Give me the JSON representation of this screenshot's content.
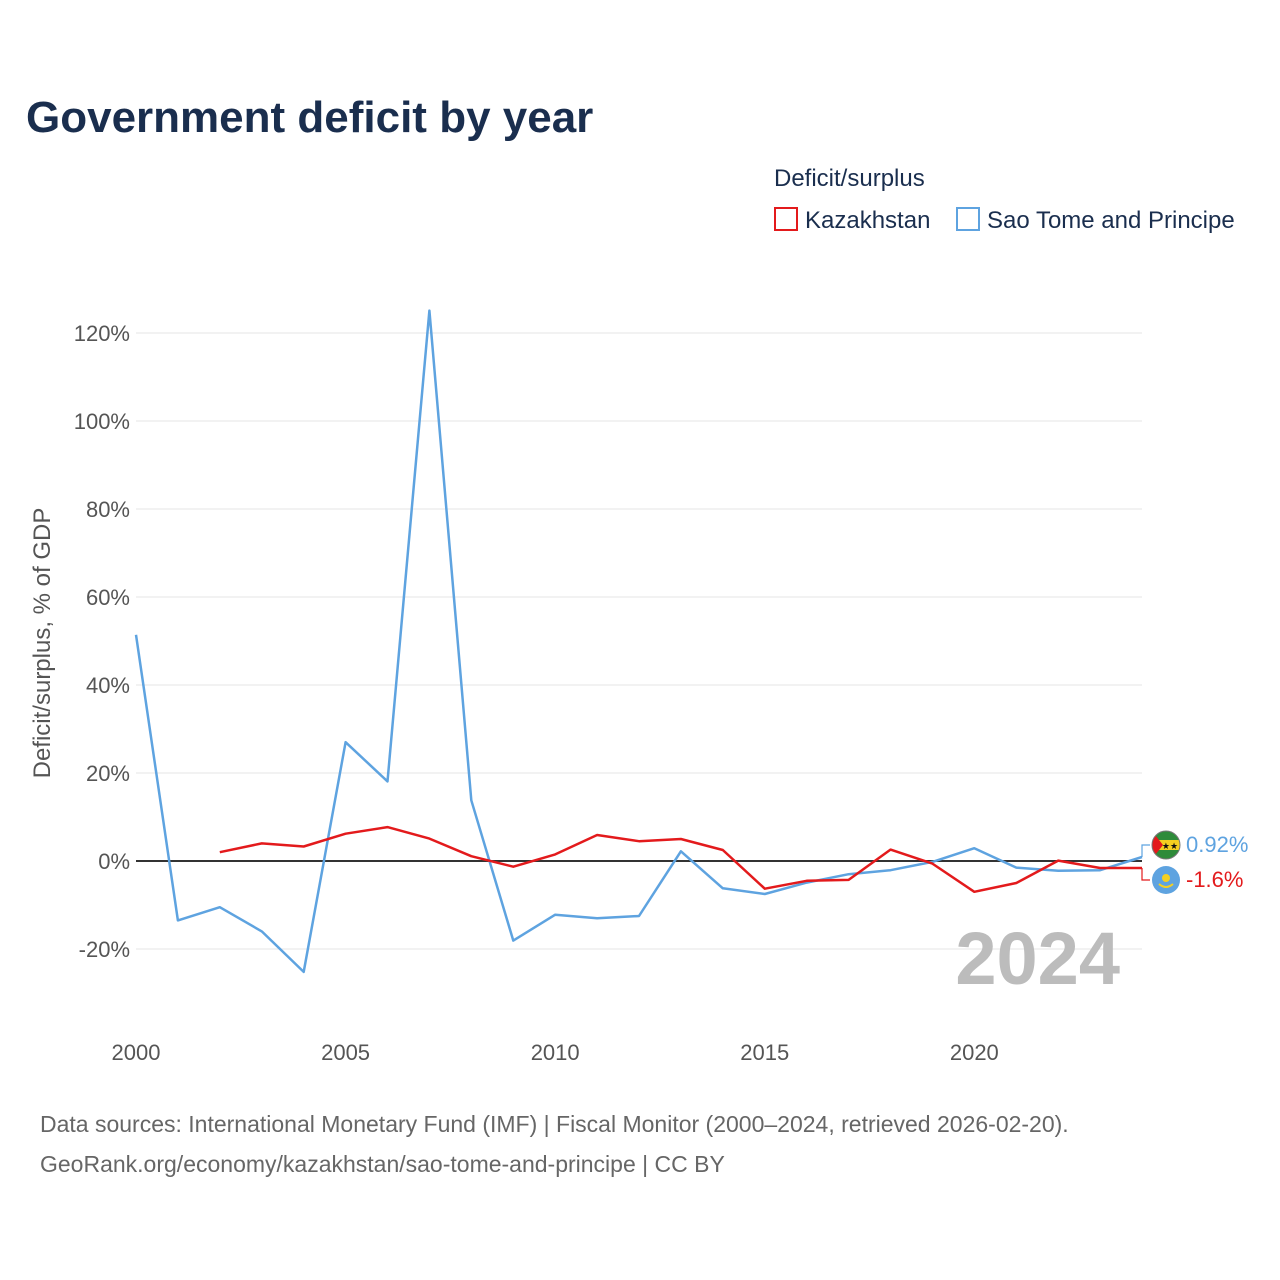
{
  "colors": {
    "kazakhstan": "#e31a1c",
    "sao_tome": "#5ea3e0"
  },
  "chart_data": {
    "type": "line",
    "title": "Government deficit by year",
    "ylabel": "Deficit/surplus, % of GDP",
    "xlabel": "",
    "legend_title": "Deficit/surplus",
    "legend_position": "top-right",
    "year_watermark": "2024",
    "xlim": [
      2000,
      2024
    ],
    "ylim": [
      -35,
      128
    ],
    "x_ticks": [
      2000,
      2005,
      2010,
      2015,
      2020
    ],
    "y_ticks": [
      -20,
      0,
      20,
      40,
      60,
      80,
      100,
      120
    ],
    "y_tick_labels": [
      "-20%",
      "0%",
      "20%",
      "40%",
      "60%",
      "80%",
      "100%",
      "120%"
    ],
    "series": [
      {
        "name": "Kazakhstan",
        "color": "#e31a1c",
        "end_label": "-1.6%",
        "icon": "kazakhstan-flag-icon",
        "x": [
          2002,
          2003,
          2004,
          2005,
          2006,
          2007,
          2008,
          2009,
          2010,
          2011,
          2012,
          2013,
          2014,
          2015,
          2016,
          2017,
          2018,
          2019,
          2020,
          2021,
          2022,
          2023,
          2024
        ],
        "values": [
          2.0,
          4.0,
          3.3,
          6.2,
          7.7,
          5.1,
          1.1,
          -1.3,
          1.5,
          5.9,
          4.5,
          5.0,
          2.5,
          -6.3,
          -4.5,
          -4.3,
          2.6,
          -0.6,
          -7.0,
          -5.0,
          0.1,
          -1.6,
          -1.6
        ]
      },
      {
        "name": "Sao Tome and Principe",
        "color": "#5ea3e0",
        "end_label": "0.92%",
        "icon": "sao-tome-flag-icon",
        "x": [
          2000,
          2001,
          2002,
          2003,
          2004,
          2005,
          2006,
          2007,
          2008,
          2009,
          2010,
          2011,
          2012,
          2013,
          2014,
          2015,
          2016,
          2017,
          2018,
          2019,
          2020,
          2021,
          2022,
          2023,
          2024
        ],
        "values": [
          51.4,
          -13.5,
          -10.5,
          -16.0,
          -25.2,
          27.0,
          18.1,
          125.1,
          13.8,
          -18.1,
          -12.2,
          -13.0,
          -12.5,
          2.2,
          -6.2,
          -7.5,
          -4.9,
          -3.0,
          -2.1,
          -0.2,
          2.9,
          -1.5,
          -2.2,
          -2.1,
          0.92
        ]
      }
    ]
  },
  "footer": {
    "sources_line": "Data sources: International Monetary Fund (IMF) | Fiscal Monitor (2000–2024, retrieved 2026-02-20).",
    "url_line": "GeoRank.org/economy/kazakhstan/sao-tome-and-principe | CC BY"
  }
}
